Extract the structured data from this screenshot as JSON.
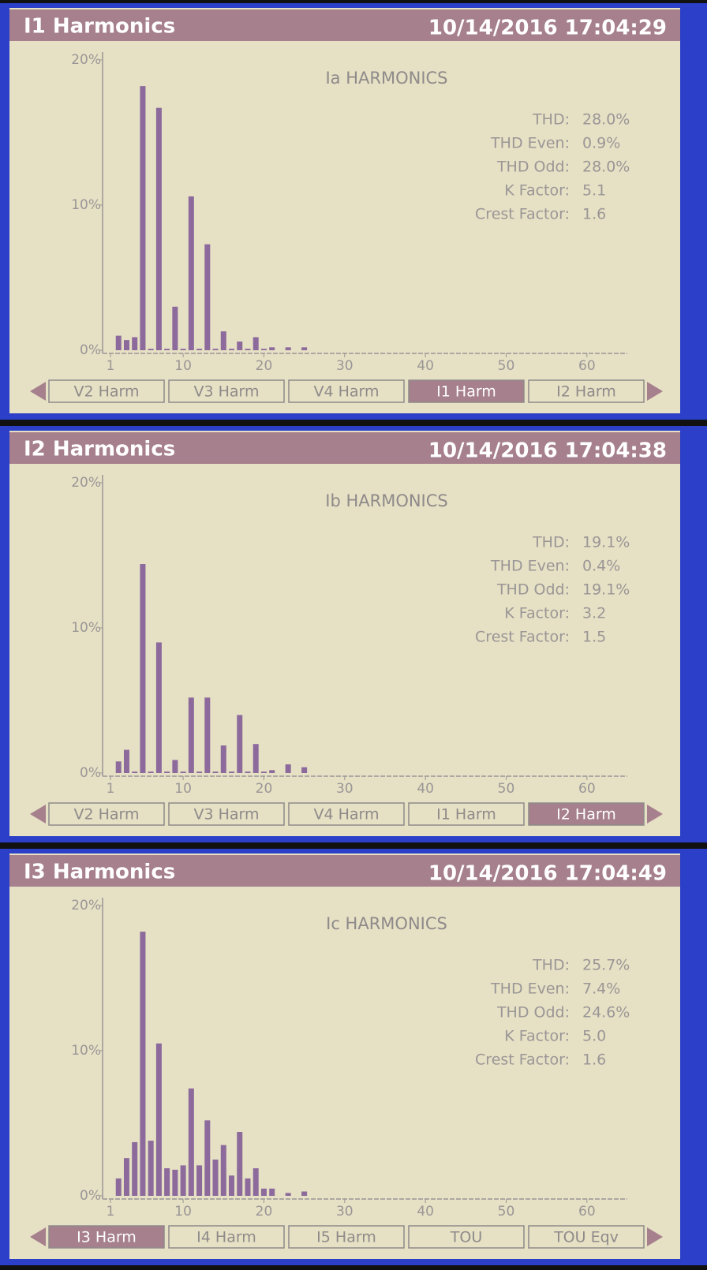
{
  "chart_data": [
    {
      "type": "bar",
      "header": "I1 Harmonics",
      "timestamp": "10/14/2016 17:04:29",
      "title": "Ia HARMONICS",
      "stats": [
        [
          "THD:",
          "28.0%"
        ],
        [
          "THD Even:",
          "0.9%"
        ],
        [
          "THD Odd:",
          "28.0%"
        ],
        [
          "K Factor:",
          "5.1"
        ],
        [
          "Crest Factor:",
          "1.6"
        ]
      ],
      "x": [
        2,
        3,
        4,
        5,
        6,
        7,
        8,
        9,
        10,
        11,
        12,
        13,
        14,
        15,
        16,
        17,
        18,
        19,
        20,
        21,
        23,
        25
      ],
      "values": [
        1.0,
        0.7,
        0.9,
        18.2,
        0.1,
        16.7,
        0.1,
        3.0,
        0.1,
        10.6,
        0.1,
        7.3,
        0.1,
        1.3,
        0.1,
        0.6,
        0.1,
        0.9,
        0.1,
        0.2,
        0.2,
        0.2
      ],
      "color": "#8c6a9c",
      "xlim": [
        1,
        65
      ],
      "xticks": [
        1,
        10,
        20,
        30,
        40,
        50,
        60
      ],
      "ylim": [
        0,
        20
      ],
      "yticks": [
        {
          "value": 0,
          "label": "0%"
        },
        {
          "value": 10,
          "label": "10%"
        },
        {
          "value": 20,
          "label": "20%"
        }
      ],
      "tabs": [
        "V2 Harm",
        "V3 Harm",
        "V4 Harm",
        "I1 Harm",
        "I2 Harm"
      ],
      "active_tab": 3
    },
    {
      "type": "bar",
      "header": "I2 Harmonics",
      "timestamp": "10/14/2016 17:04:38",
      "title": "Ib HARMONICS",
      "stats": [
        [
          "THD:",
          "19.1%"
        ],
        [
          "THD Even:",
          "0.4%"
        ],
        [
          "THD Odd:",
          "19.1%"
        ],
        [
          "K Factor:",
          "3.2"
        ],
        [
          "Crest Factor:",
          "1.5"
        ]
      ],
      "x": [
        2,
        3,
        4,
        5,
        6,
        7,
        8,
        9,
        10,
        11,
        12,
        13,
        14,
        15,
        16,
        17,
        18,
        19,
        20,
        21,
        23,
        25
      ],
      "values": [
        0.8,
        1.6,
        0.1,
        14.4,
        0.1,
        9.0,
        0.1,
        0.9,
        0.1,
        5.2,
        0.1,
        5.2,
        0.1,
        1.9,
        0.1,
        4.0,
        0.1,
        2.0,
        0.1,
        0.2,
        0.6,
        0.4
      ],
      "color": "#8c6a9c",
      "xlim": [
        1,
        65
      ],
      "xticks": [
        1,
        10,
        20,
        30,
        40,
        50,
        60
      ],
      "ylim": [
        0,
        20
      ],
      "yticks": [
        {
          "value": 0,
          "label": "0%"
        },
        {
          "value": 10,
          "label": "10%"
        },
        {
          "value": 20,
          "label": "20%"
        }
      ],
      "tabs": [
        "V2 Harm",
        "V3 Harm",
        "V4 Harm",
        "I1 Harm",
        "I2 Harm"
      ],
      "active_tab": 4
    },
    {
      "type": "bar",
      "header": "I3 Harmonics",
      "timestamp": "10/14/2016 17:04:49",
      "title": "Ic HARMONICS",
      "stats": [
        [
          "THD:",
          "25.7%"
        ],
        [
          "THD Even:",
          "7.4%"
        ],
        [
          "THD Odd:",
          "24.6%"
        ],
        [
          "K Factor:",
          "5.0"
        ],
        [
          "Crest Factor:",
          "1.6"
        ]
      ],
      "x": [
        2,
        3,
        4,
        5,
        6,
        7,
        8,
        9,
        10,
        11,
        12,
        13,
        14,
        15,
        16,
        17,
        18,
        19,
        20,
        21,
        23,
        25
      ],
      "values": [
        1.2,
        2.6,
        3.7,
        18.2,
        3.8,
        10.5,
        1.9,
        1.8,
        2.1,
        7.4,
        2.1,
        5.2,
        2.5,
        3.5,
        1.4,
        4.4,
        1.2,
        1.9,
        0.5,
        0.5,
        0.2,
        0.3
      ],
      "color": "#8c6a9c",
      "xlim": [
        1,
        65
      ],
      "xticks": [
        1,
        10,
        20,
        30,
        40,
        50,
        60
      ],
      "ylim": [
        0,
        20
      ],
      "yticks": [
        {
          "value": 0,
          "label": "0%"
        },
        {
          "value": 10,
          "label": "10%"
        },
        {
          "value": 20,
          "label": "20%"
        }
      ],
      "tabs": [
        "I3 Harm",
        "I4 Harm",
        "I5 Harm",
        "TOU",
        "TOU Eqv"
      ],
      "active_tab": 0
    }
  ]
}
